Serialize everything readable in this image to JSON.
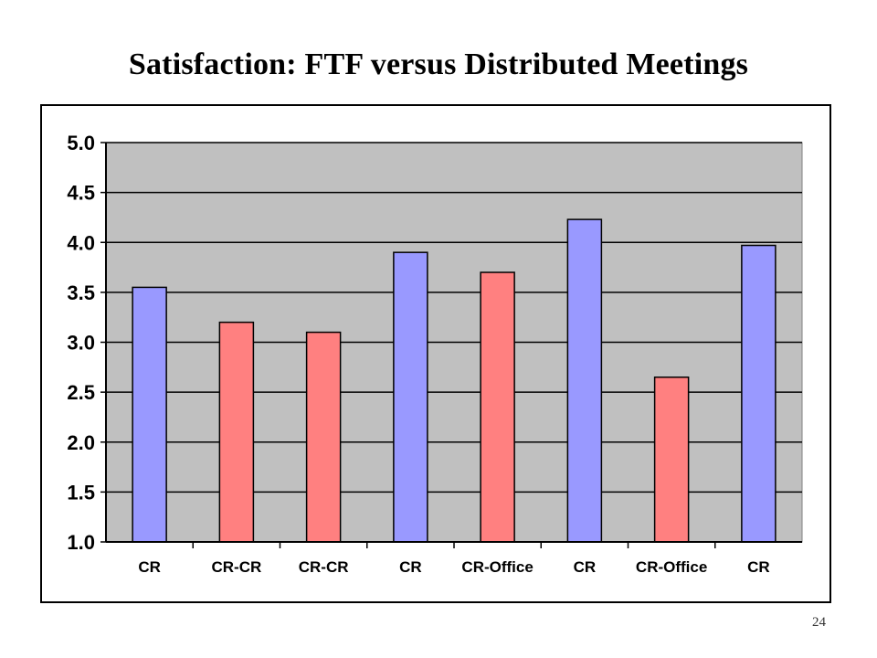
{
  "slide": {
    "title": "Satisfaction: FTF versus Distributed Meetings",
    "page_number": "24"
  },
  "chart_data": {
    "type": "bar",
    "title": "",
    "xlabel": "",
    "ylabel": "",
    "ylim": [
      1.0,
      5.0
    ],
    "y_ticks": [
      "1.0",
      "1.5",
      "2.0",
      "2.5",
      "3.0",
      "3.5",
      "4.0",
      "4.5",
      "5.0"
    ],
    "grid": true,
    "legend": "none",
    "categories": [
      "CR",
      "CR-CR",
      "CR-CR",
      "CR",
      "CR-Office",
      "CR",
      "CR-Office",
      "CR"
    ],
    "values": [
      3.55,
      3.2,
      3.1,
      3.9,
      3.7,
      4.23,
      2.65,
      3.97
    ],
    "bar_colors": [
      "#9999ff",
      "#ff8080",
      "#ff8080",
      "#9999ff",
      "#ff8080",
      "#9999ff",
      "#ff8080",
      "#9999ff"
    ],
    "plot_background": "#c0c0c0"
  }
}
